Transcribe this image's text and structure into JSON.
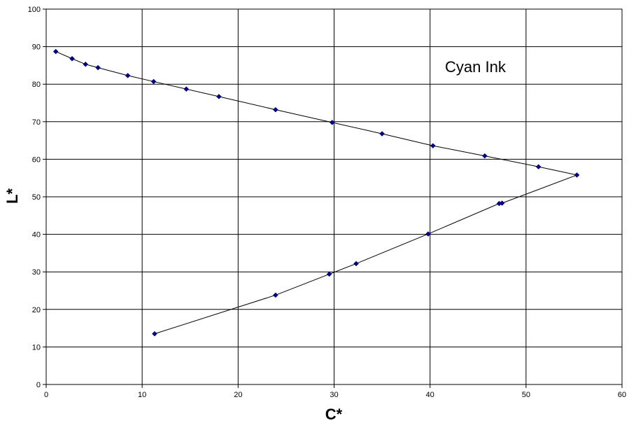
{
  "chart_data": {
    "type": "scatter",
    "title": "",
    "xlabel": "C*",
    "ylabel": "L*",
    "annotation": "Cyan Ink",
    "xlim": [
      0,
      60
    ],
    "ylim": [
      0,
      100
    ],
    "x_ticks": [
      0,
      10,
      20,
      30,
      40,
      50,
      60
    ],
    "y_ticks": [
      0,
      10,
      20,
      30,
      40,
      50,
      60,
      70,
      80,
      90,
      100
    ],
    "grid": true,
    "legend": "none",
    "series": [
      {
        "color": "#000080",
        "line_color": "#000000",
        "marker": "diamond",
        "x": [
          1.0,
          2.7,
          4.1,
          5.4,
          8.5,
          11.2,
          14.6,
          18.0,
          23.9,
          29.8,
          35.0,
          40.3,
          45.7,
          51.3,
          55.3,
          47.5,
          47.2,
          39.8,
          32.3,
          29.5,
          23.9,
          11.3
        ],
        "y": [
          88.7,
          86.8,
          85.3,
          84.4,
          82.3,
          80.7,
          78.7,
          76.7,
          73.2,
          69.8,
          66.8,
          63.6,
          60.9,
          58.0,
          55.8,
          48.3,
          48.2,
          40.1,
          32.2,
          29.4,
          23.8,
          13.5
        ]
      }
    ]
  }
}
